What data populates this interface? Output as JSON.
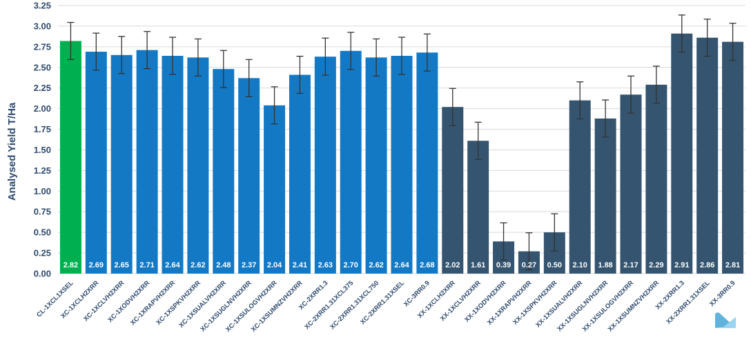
{
  "chart_data": {
    "type": "bar",
    "title": "",
    "xlabel": "",
    "ylabel": "Analysed Yield T/Ha",
    "ylim": [
      0,
      3.25
    ],
    "yticks": [
      "0.00",
      "0.25",
      "0.50",
      "0.75",
      "1.00",
      "1.25",
      "1.50",
      "1.75",
      "2.00",
      "2.25",
      "2.50",
      "2.75",
      "3.00",
      "3.25"
    ],
    "grid": true,
    "legend": "none",
    "categories": [
      "CL-1XCL1XSEL",
      "XC-1XCLH2XRR",
      "XC-1XCLVH2XRR",
      "XC-1XODVH2XRR",
      "XC-1XRAPVH2XRR",
      "XC-1XSPKVH2XRR",
      "XC-1XSUALVH2XRR",
      "XC-1XSUGLNVH2XRR",
      "XC-1XSULOGVH2XRR",
      "XC-1XSUMNZVH2XRR",
      "XC-2XRR1.3",
      "XC-2XRR1.31XCL375",
      "XC-2XRR1.31XCL750",
      "XC-2XRR1.31XSEL",
      "XC-3RR0.9",
      "XX-1XCLH2XRR",
      "XX-1XCLVH2XRR",
      "XX-1XODVH2XRR",
      "XX-1XRAPVH2XRR",
      "XX-1XSPKVH2XRR",
      "XX-1XSUALVH2XRR",
      "XX-1XSUGLNVH2XRR",
      "XX-1XSULOGVH2XRR",
      "XX-1XSUMNZVH2XRR",
      "XX-2XRR1.3",
      "XX-2XRR1.31XSEL",
      "XX-3RR0.9"
    ],
    "values": [
      2.82,
      2.69,
      2.65,
      2.71,
      2.64,
      2.62,
      2.48,
      2.37,
      2.04,
      2.41,
      2.63,
      2.7,
      2.62,
      2.64,
      2.68,
      2.02,
      1.61,
      0.39,
      0.27,
      0.5,
      2.1,
      1.88,
      2.17,
      2.29,
      2.91,
      2.86,
      2.81
    ],
    "value_labels": [
      "2.82",
      "2.69",
      "2.65",
      "2.71",
      "2.64",
      "2.62",
      "2.48",
      "2.37",
      "2.04",
      "2.41",
      "2.63",
      "2.70",
      "2.62",
      "2.64",
      "2.68",
      "2.02",
      "1.61",
      "0.39",
      "0.27",
      "0.50",
      "2.10",
      "1.88",
      "2.17",
      "2.29",
      "2.91",
      "2.86",
      "2.81"
    ],
    "error": 0.225,
    "groups": [
      "CL",
      "XC",
      "XC",
      "XC",
      "XC",
      "XC",
      "XC",
      "XC",
      "XC",
      "XC",
      "XC",
      "XC",
      "XC",
      "XC",
      "XC",
      "XX",
      "XX",
      "XX",
      "XX",
      "XX",
      "XX",
      "XX",
      "XX",
      "XX",
      "XX",
      "XX",
      "XX"
    ],
    "colors": {
      "CL": "#00b050",
      "XC": "#1479c4",
      "XX": "#34546f",
      "error_bar": "#333333",
      "grid": "#d9d9d9",
      "text": "#2f4a6d"
    }
  },
  "icons": {
    "corner_logo": "logo-icon"
  }
}
